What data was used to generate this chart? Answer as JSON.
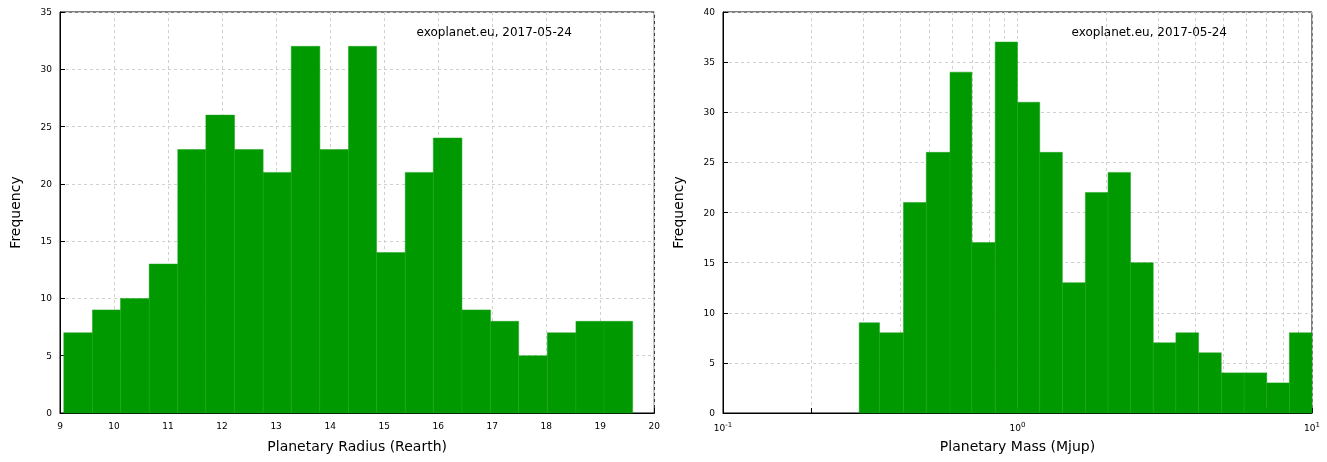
{
  "chart_data": [
    {
      "type": "histogram",
      "annotations": [
        "exoplanet.eu, 2017-05-24"
      ],
      "xlabel": "Planetary Radius (Rearth)",
      "ylabel": "Frequency",
      "color": "#009900",
      "bins": [
        9.07,
        9.6,
        10.12,
        10.65,
        11.18,
        11.7,
        12.23,
        12.76,
        13.28,
        13.81,
        14.34,
        14.86,
        15.39,
        15.91,
        16.44,
        16.97,
        17.49,
        18.02,
        18.55,
        19.07,
        19.6
      ],
      "values": [
        7,
        9,
        10,
        13,
        23,
        26,
        23,
        21,
        32,
        23,
        32,
        14,
        21,
        24,
        9,
        8,
        5,
        7,
        8,
        8
      ],
      "xlim": [
        9,
        20
      ],
      "xticks": [
        9,
        10,
        11,
        12,
        13,
        14,
        15,
        16,
        17,
        18,
        19,
        20
      ],
      "ylim": [
        0,
        35
      ],
      "yticks": [
        0,
        5,
        10,
        15,
        20,
        25,
        30,
        35
      ],
      "grid": true
    },
    {
      "type": "histogram",
      "annotations": [
        "exoplanet.eu, 2017-05-24"
      ],
      "xlabel": "Planetary Mass (Mjup)",
      "ylabel": "Frequency",
      "color": "#009900",
      "log": "x",
      "bins": [
        0.29,
        0.34,
        0.41,
        0.49,
        0.59,
        0.7,
        0.84,
        1.0,
        1.19,
        1.42,
        1.7,
        2.03,
        2.42,
        2.89,
        3.45,
        4.12,
        4.92,
        5.88,
        7.02,
        8.38,
        10
      ],
      "values": [
        9,
        8,
        21,
        26,
        34,
        17,
        37,
        31,
        26,
        13,
        22,
        24,
        15,
        7,
        8,
        6,
        4,
        4,
        3,
        8
      ],
      "xlim": [
        0.1,
        10
      ],
      "xticks": [
        {
          "value": 0.1,
          "label": "10$^{-1}$"
        },
        {
          "value": 0.2,
          "label": null
        },
        {
          "value": 0.3,
          "label": null
        },
        {
          "value": 0.4,
          "label": null
        },
        {
          "value": 0.5,
          "label": null
        },
        {
          "value": 0.6,
          "label": null
        },
        {
          "value": 0.7,
          "label": null
        },
        {
          "value": 0.8,
          "label": null
        },
        {
          "value": 0.9,
          "label": null
        },
        {
          "value": 1,
          "label": "10$^{0}$"
        },
        {
          "value": 2,
          "label": null
        },
        {
          "value": 3,
          "label": null
        },
        {
          "value": 4,
          "label": null
        },
        {
          "value": 5,
          "label": null
        },
        {
          "value": 6,
          "label": null
        },
        {
          "value": 7,
          "label": null
        },
        {
          "value": 8,
          "label": null
        },
        {
          "value": 9,
          "label": null
        },
        {
          "value": 10,
          "label": "10$^{1}$"
        }
      ],
      "ylim": [
        0,
        40
      ],
      "yticks": [
        0,
        5,
        10,
        15,
        20,
        25,
        30,
        35,
        40
      ],
      "grid": true
    }
  ]
}
